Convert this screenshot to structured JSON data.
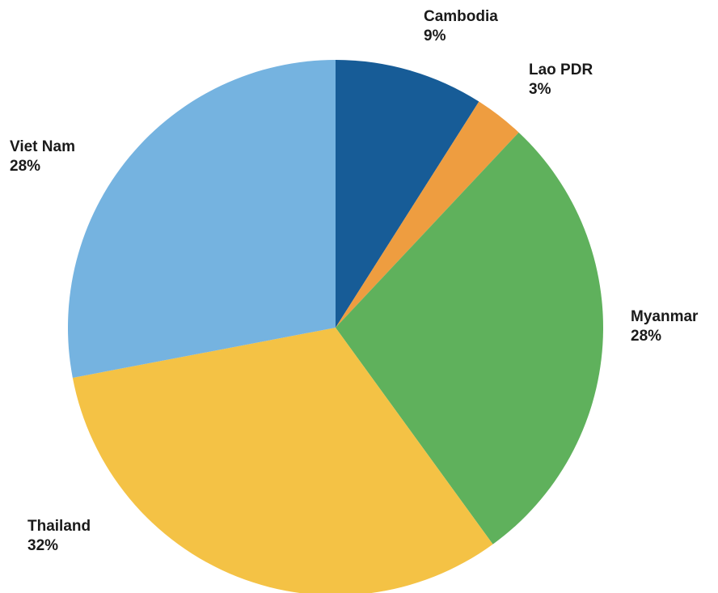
{
  "chart_data": {
    "type": "pie",
    "title": "",
    "start_angle": "12 o'clock",
    "direction": "clockwise",
    "slices": [
      {
        "label": "Cambodia",
        "pct_text": "9%",
        "value": 9,
        "color": "#175c97"
      },
      {
        "label": "Lao PDR",
        "pct_text": "3%",
        "value": 3,
        "color": "#ee9d40"
      },
      {
        "label": "Myanmar",
        "pct_text": "28%",
        "value": 28,
        "color": "#5fb15c"
      },
      {
        "label": "Thailand",
        "pct_text": "32%",
        "value": 32,
        "color": "#f4c245"
      },
      {
        "label": "Viet Nam",
        "pct_text": "28%",
        "value": 28,
        "color": "#75b3e0"
      }
    ]
  }
}
